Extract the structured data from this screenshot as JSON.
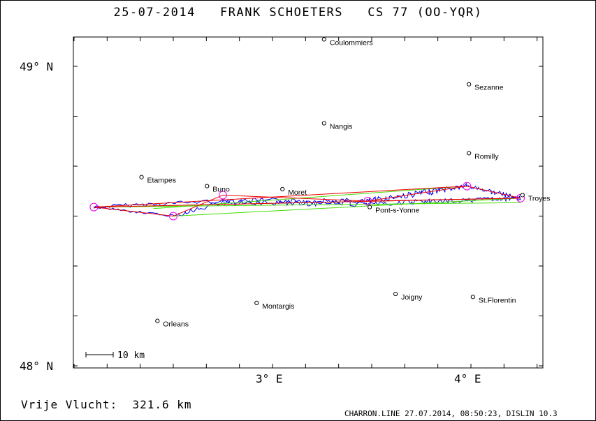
{
  "title": "25-07-2014   FRANK SCHOETERS   CS 77 (OO-YQR)",
  "distance": "Vrije Vlucht:  321.6 km",
  "footer": "CHARRON.LINE 27.07.2014, 08:50:23, DISLIN 10.3",
  "scale_label": "10 km",
  "axes": {
    "lat_labels": [
      {
        "text": "49° N",
        "lat": 49.0
      },
      {
        "text": "48° N",
        "lat": 48.0
      }
    ],
    "lon_labels": [
      {
        "text": "3° E",
        "lon": 3.0
      },
      {
        "text": "4° E",
        "lon": 4.0
      }
    ]
  },
  "towns": [
    {
      "name": "Coulommiers",
      "lon": 3.26,
      "lat": 49.09
    },
    {
      "name": "Sezanne",
      "lon": 3.99,
      "lat": 48.94
    },
    {
      "name": "Nangis",
      "lon": 3.26,
      "lat": 48.81
    },
    {
      "name": "Romilly",
      "lon": 3.99,
      "lat": 48.71
    },
    {
      "name": "Etampes",
      "lon": 2.34,
      "lat": 48.63
    },
    {
      "name": "Buno",
      "lon": 2.67,
      "lat": 48.6
    },
    {
      "name": "Moret",
      "lon": 3.05,
      "lat": 48.59
    },
    {
      "name": "Troyes",
      "lon": 4.26,
      "lat": 48.57
    },
    {
      "name": "Pont-s-Yonne",
      "lon": 3.49,
      "lat": 48.53
    },
    {
      "name": "Joigny",
      "lon": 3.62,
      "lat": 48.24
    },
    {
      "name": "St.Florentin",
      "lon": 4.01,
      "lat": 48.23
    },
    {
      "name": "Montargis",
      "lon": 2.92,
      "lat": 48.21
    },
    {
      "name": "Orleans",
      "lon": 2.42,
      "lat": 48.15
    }
  ],
  "turnpoints": [
    {
      "lon": 2.1,
      "lat": 48.53
    },
    {
      "lon": 2.5,
      "lat": 48.5
    },
    {
      "lon": 2.75,
      "lat": 48.57
    },
    {
      "lon": 3.48,
      "lat": 48.55
    },
    {
      "lon": 3.98,
      "lat": 48.6
    },
    {
      "lon": 4.25,
      "lat": 48.56
    }
  ],
  "colors": {
    "track": "#0000ee",
    "task": "#ee0000",
    "optimized": "#44dd00",
    "turnpoint": "#ee00ee",
    "frame": "#000000"
  }
}
